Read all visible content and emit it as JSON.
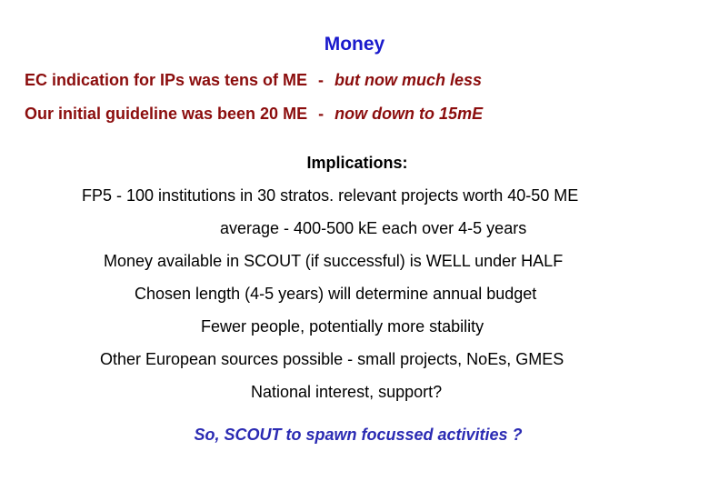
{
  "title": "Money",
  "indications": [
    {
      "left": "EC indication for IPs was tens of ME",
      "separator": "-",
      "right": "but now much less"
    },
    {
      "left": "Our initial guideline was been 20 ME",
      "separator": "-",
      "right": "now down to 15mE"
    }
  ],
  "implications_heading": "Implications:",
  "implications": [
    "FP5 - 100 institutions in 30 stratos. relevant projects worth 40-50 ME",
    "average - 400-500 kE each over 4-5 years",
    "Money available in SCOUT (if successful) is WELL under HALF",
    "Chosen length (4-5 years) will determine annual budget",
    "Fewer people, potentially more stability",
    "Other European sources possible - small projects, NoEs, GMES",
    "National interest, support?"
  ],
  "closing": "So, SCOUT to spawn focussed activities ?",
  "colors": {
    "title": "#1a1acc",
    "indication": "#8b0d0d",
    "body": "#000000",
    "closing": "#2b2bb3"
  }
}
